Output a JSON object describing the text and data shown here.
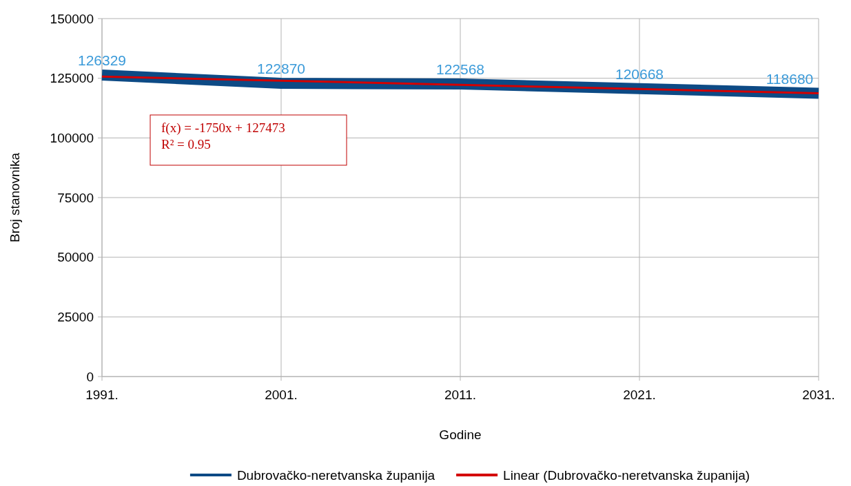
{
  "chart_data": {
    "type": "line",
    "xlabel": "Godine",
    "ylabel": "Broj stanovnika",
    "categories": [
      "1991.",
      "2001.",
      "2011.",
      "2021.",
      "2031."
    ],
    "series": [
      {
        "name": "Dubrovačko-neretvanska županija",
        "color": "#0d4a85",
        "values": [
          126329,
          122870,
          122568,
          120668,
          118680
        ],
        "value_labels": [
          "126329",
          "122870",
          "122568",
          "120668",
          "118680"
        ]
      },
      {
        "name": "Linear (Dubrovačko-neretvanska županija)",
        "color": "#d40000",
        "values": [
          125723,
          123973,
          122223,
          120473,
          118723
        ]
      }
    ],
    "ylim": [
      0,
      150000
    ],
    "yticks": [
      0,
      25000,
      50000,
      75000,
      100000,
      125000,
      150000
    ],
    "grid": true,
    "legend": "bottom",
    "annotations": [
      "f(x) = -1750x + 127473",
      "R² = 0.95"
    ]
  }
}
